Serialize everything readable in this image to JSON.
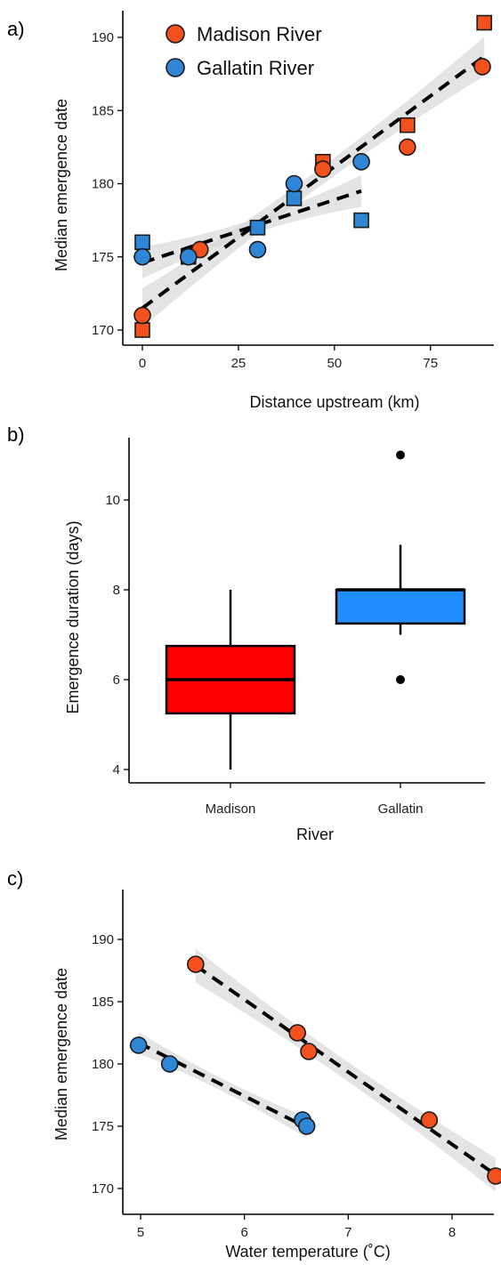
{
  "colors": {
    "madison": "#f2501c",
    "gallatin": "#2f86d6",
    "box_madison": "#ff0000",
    "box_gallatin": "#1f8fff",
    "band": "#d9d9d9"
  },
  "chart_data": [
    {
      "panel": "a)",
      "type": "scatter",
      "title": "",
      "xlabel": "Distance upstream (km)",
      "ylabel": "Median emergence date",
      "xlim": [
        -2,
        90
      ],
      "ylim": [
        169,
        192
      ],
      "xticks": [
        0,
        25,
        50,
        75
      ],
      "yticks": [
        170,
        175,
        180,
        185,
        190
      ],
      "legend": {
        "placement": "top-left"
      },
      "series": [
        {
          "name": "Madison River",
          "color": "#f2501c",
          "circles": [
            [
              0,
              171
            ],
            [
              15,
              175.5
            ],
            [
              47,
              181
            ],
            [
              69,
              182.5
            ],
            [
              88.5,
              188
            ]
          ],
          "squares": [
            [
              0,
              170
            ],
            [
              47,
              181.5
            ],
            [
              69,
              184
            ],
            [
              89,
              191
            ]
          ],
          "fit": [
            [
              0,
              171.5
            ],
            [
              89,
              188.7
            ]
          ]
        },
        {
          "name": "Gallatin River",
          "color": "#2f86d6",
          "circles": [
            [
              0,
              175
            ],
            [
              12,
              175
            ],
            [
              30,
              175.5
            ],
            [
              39.5,
              180
            ],
            [
              57,
              181.5
            ]
          ],
          "squares": [
            [
              0,
              176
            ],
            [
              12,
              175
            ],
            [
              30,
              177
            ],
            [
              39.5,
              179
            ],
            [
              57,
              177.5
            ]
          ],
          "fit": [
            [
              0,
              174.6
            ],
            [
              57,
              179.5
            ]
          ]
        }
      ]
    },
    {
      "panel": "b)",
      "type": "box",
      "title": "",
      "xlabel": "River",
      "ylabel": "Emergence duration (days)",
      "categories": [
        "Madison",
        "Gallatin"
      ],
      "ylim": [
        3.8,
        11.5
      ],
      "yticks": [
        4,
        6,
        8,
        10
      ],
      "boxes": [
        {
          "category": "Madison",
          "color": "#ff0000",
          "min": 4,
          "q1": 5.25,
          "median": 6,
          "q3": 6.75,
          "max": 8,
          "outliers": []
        },
        {
          "category": "Gallatin",
          "color": "#1f8fff",
          "min": 7,
          "q1": 7.25,
          "median": 8,
          "q3": 8,
          "max": 9,
          "outliers": [
            11,
            6
          ]
        }
      ]
    },
    {
      "panel": "c)",
      "type": "scatter",
      "title": "",
      "xlabel": "Water temperature (˚C)",
      "ylabel": "Median emergence date",
      "xlim": [
        4.85,
        8.5
      ],
      "ylim": [
        169,
        192
      ],
      "xticks": [
        5,
        6,
        7,
        8
      ],
      "yticks": [
        170,
        175,
        180,
        185,
        190
      ],
      "series": [
        {
          "name": "Madison River",
          "color": "#f2501c",
          "circles": [
            [
              5.53,
              188
            ],
            [
              6.51,
              182.5
            ],
            [
              6.62,
              181
            ],
            [
              7.78,
              175.5
            ],
            [
              8.42,
              171
            ]
          ],
          "fit": [
            [
              5.53,
              187.9
            ],
            [
              8.42,
              171.1
            ]
          ]
        },
        {
          "name": "Gallatin River",
          "color": "#2f86d6",
          "circles": [
            [
              4.98,
              181.5
            ],
            [
              5.28,
              180
            ],
            [
              6.56,
              175.5
            ],
            [
              6.6,
              175
            ]
          ],
          "fit": [
            [
              4.98,
              181.7
            ],
            [
              6.6,
              174.9
            ]
          ]
        }
      ]
    }
  ]
}
